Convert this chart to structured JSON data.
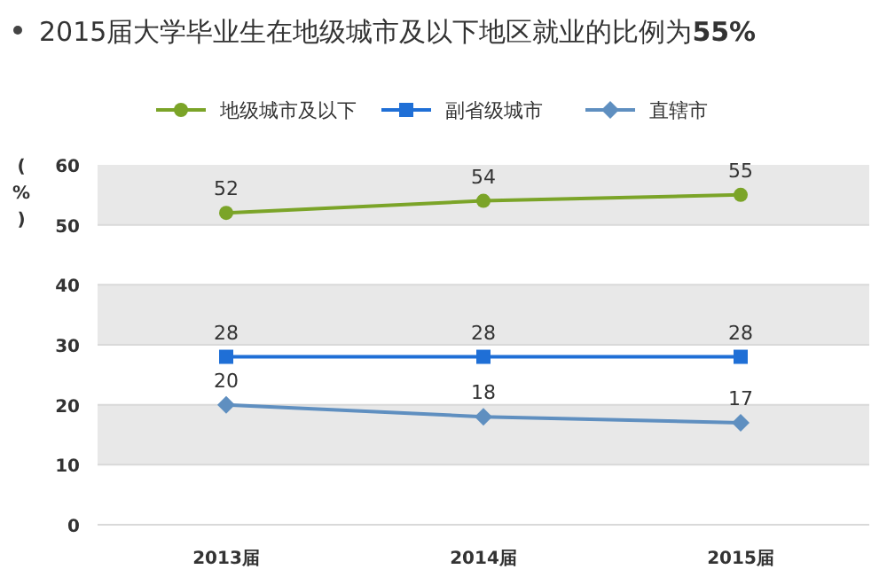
{
  "chart_data": {
    "type": "line",
    "title": "2015届大学毕业生在地级城市及以下地区就业的比例为**55%**",
    "ylabel": "(%)",
    "categories": [
      "2013届",
      "2014届",
      "2015届"
    ],
    "series": [
      {
        "name": "地级城市及以下",
        "color": "#7ba428",
        "marker": "circle",
        "values": [
          52,
          54,
          55
        ]
      },
      {
        "name": "副省级城市",
        "color": "#1f6fd6",
        "marker": "square",
        "values": [
          28,
          28,
          28
        ]
      },
      {
        "name": "直辖市",
        "color": "#5f8fc0",
        "marker": "diamond",
        "values": [
          20,
          18,
          17
        ]
      }
    ],
    "ylim": [
      0,
      60
    ],
    "yticks": [
      0,
      10,
      20,
      30,
      40,
      50,
      60
    ],
    "grid": "y",
    "legend": "top",
    "data_labels": true
  }
}
